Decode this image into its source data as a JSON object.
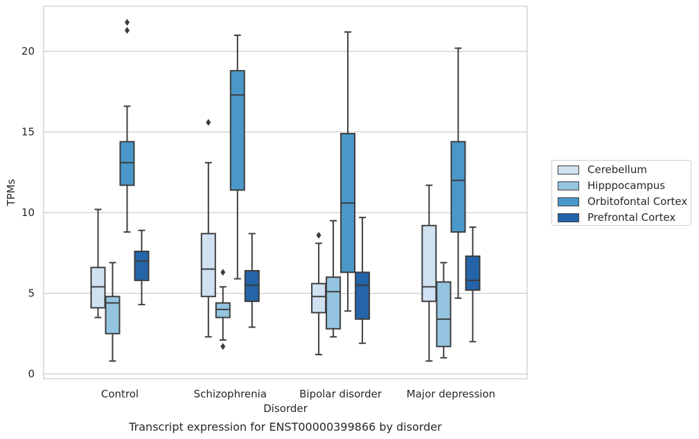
{
  "chart_data": {
    "type": "box",
    "title": "Transcript expression for ENST00000399866 by disorder",
    "xlabel": "Disorder",
    "ylabel": "TPMs",
    "categories": [
      "Control",
      "Schizophrenia",
      "Bipolar disorder",
      "Major depression"
    ],
    "ylim": [
      -0.3,
      22.8
    ],
    "yticks": [
      "0",
      "5",
      "10",
      "15",
      "20"
    ],
    "grid": "horizontal",
    "legend_position": "right",
    "series": [
      {
        "name": "Cerebellum",
        "color": "#d0e1f2",
        "boxes": [
          {
            "whisker_low": 3.5,
            "q1": 4.1,
            "median": 5.4,
            "q3": 6.6,
            "whisker_high": 10.2,
            "outliers": []
          },
          {
            "whisker_low": 2.3,
            "q1": 4.8,
            "median": 6.5,
            "q3": 8.7,
            "whisker_high": 13.1,
            "outliers": [
              15.6
            ]
          },
          {
            "whisker_low": 1.2,
            "q1": 3.8,
            "median": 4.8,
            "q3": 5.6,
            "whisker_high": 8.1,
            "outliers": [
              8.6
            ]
          },
          {
            "whisker_low": 0.8,
            "q1": 4.5,
            "median": 5.4,
            "q3": 9.2,
            "whisker_high": 11.7,
            "outliers": []
          }
        ]
      },
      {
        "name": "Hipppocampus",
        "color": "#94c4df",
        "boxes": [
          {
            "whisker_low": 0.8,
            "q1": 2.5,
            "median": 4.4,
            "q3": 4.8,
            "whisker_high": 6.9,
            "outliers": []
          },
          {
            "whisker_low": 2.1,
            "q1": 3.5,
            "median": 4.0,
            "q3": 4.4,
            "whisker_high": 5.4,
            "outliers": [
              1.7,
              6.3
            ]
          },
          {
            "whisker_low": 2.3,
            "q1": 2.8,
            "median": 5.1,
            "q3": 6.0,
            "whisker_high": 9.5,
            "outliers": []
          },
          {
            "whisker_low": 1.0,
            "q1": 1.7,
            "median": 3.4,
            "q3": 5.7,
            "whisker_high": 6.9,
            "outliers": []
          }
        ]
      },
      {
        "name": "Orbitofontal Cortex",
        "color": "#4a98c9",
        "boxes": [
          {
            "whisker_low": 8.8,
            "q1": 11.7,
            "median": 13.1,
            "q3": 14.4,
            "whisker_high": 16.6,
            "outliers": [
              21.3,
              21.8
            ]
          },
          {
            "whisker_low": 5.9,
            "q1": 11.4,
            "median": 17.3,
            "q3": 18.8,
            "whisker_high": 21.0,
            "outliers": []
          },
          {
            "whisker_low": 3.9,
            "q1": 6.3,
            "median": 10.6,
            "q3": 14.9,
            "whisker_high": 21.2,
            "outliers": []
          },
          {
            "whisker_low": 4.7,
            "q1": 8.8,
            "median": 12.0,
            "q3": 14.4,
            "whisker_high": 20.2,
            "outliers": []
          }
        ]
      },
      {
        "name": "Prefrontal Cortex",
        "color": "#2464a8",
        "boxes": [
          {
            "whisker_low": 4.3,
            "q1": 5.8,
            "median": 7.0,
            "q3": 7.6,
            "whisker_high": 8.9,
            "outliers": []
          },
          {
            "whisker_low": 2.9,
            "q1": 4.5,
            "median": 5.5,
            "q3": 6.4,
            "whisker_high": 8.7,
            "outliers": []
          },
          {
            "whisker_low": 1.9,
            "q1": 3.4,
            "median": 5.5,
            "q3": 6.3,
            "whisker_high": 9.7,
            "outliers": []
          },
          {
            "whisker_low": 2.0,
            "q1": 5.2,
            "median": 5.8,
            "q3": 7.3,
            "whisker_high": 9.1,
            "outliers": []
          }
        ]
      }
    ]
  }
}
